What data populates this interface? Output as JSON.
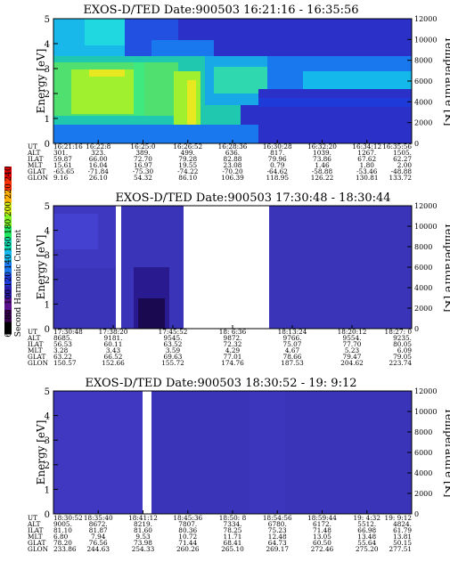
{
  "colorbar": {
    "label": "Second Harmonic Current",
    "ticks": [
      "60",
      "80",
      "100",
      "120",
      "140",
      "160",
      "180",
      "200",
      "220",
      "240"
    ],
    "colors": [
      "#000000",
      "#3a0050",
      "#5a108a",
      "#2a1aa8",
      "#1e3ad8",
      "#1a78ee",
      "#15b8ea",
      "#10d8b0",
      "#20e860",
      "#80f020",
      "#d8f010",
      "#ffb000",
      "#ff3000",
      "#e00000"
    ]
  },
  "chart_data": [
    {
      "type": "heatmap",
      "title": "EXOS-D/TED   Date:900503   16:21:16 - 16:35:56",
      "ylabel": "Energy [eV]",
      "ylabel_right": "Temperature [K]",
      "ylim": [
        0,
        5
      ],
      "ylim_right": [
        0,
        12000
      ],
      "yticks": [
        "0",
        "1",
        "2",
        "3",
        "4",
        "5"
      ],
      "yticks_right": [
        "0",
        "2000",
        "4000",
        "6000",
        "8000",
        "10000",
        "12000"
      ],
      "row_labels": [
        "UT",
        "ALT",
        "ILAT",
        "MLT",
        "GLAT",
        "GLON"
      ],
      "columns": [
        [
          "16:21:16",
          "301.",
          "59.87",
          "15.61",
          "-65.65",
          "9.16"
        ],
        [
          "16:22:8",
          "323.",
          "66.00",
          "16.04",
          "-71.84",
          "26.10"
        ],
        [
          "16:25:0",
          "389.",
          "72.70",
          "16.97",
          "-75.30",
          "54.32"
        ],
        [
          "16:26:52",
          "499.",
          "79.28",
          "19.55",
          "-74.22",
          "86.10"
        ],
        [
          "16:28:36",
          "636.",
          "82.88",
          "23.08",
          "-70.20",
          "106.39"
        ],
        [
          "16:30:28",
          "817.",
          "79.96",
          "0.79",
          "-64.62",
          "118.95"
        ],
        [
          "16:32:20",
          "1039.",
          "73.86",
          "1.46",
          "-58.88",
          "126.22"
        ],
        [
          "16:34:12",
          "1267.",
          "67.62",
          "1.80",
          "-53.46",
          "130.81"
        ],
        [
          "16:35:56",
          "1505.",
          "62.27",
          "2.00",
          "-48.88",
          "133.72"
        ]
      ]
    },
    {
      "type": "heatmap",
      "title": "EXOS-D/TED   Date:900503   17:30:48 - 18:30:44",
      "ylabel": "Energy [eV]",
      "ylabel_right": "Temperature [K]",
      "ylim": [
        0,
        5
      ],
      "ylim_right": [
        0,
        12000
      ],
      "yticks": [
        "0",
        "1",
        "2",
        "3",
        "4",
        "5"
      ],
      "yticks_right": [
        "0",
        "2000",
        "4000",
        "6000",
        "8000",
        "10000",
        "12000"
      ],
      "row_labels": [
        "UT",
        "ALT",
        "ILAT",
        "MLT",
        "GLAT",
        "GLON"
      ],
      "columns": [
        [
          "17:30:48",
          "8685.",
          "56.53",
          "3.28",
          "63.22",
          "150.57"
        ],
        [
          "17:38:20",
          "9181.",
          "60.11",
          "3.43",
          "66.52",
          "152.66"
        ],
        [
          "17:45:52",
          "9545.",
          "63.52",
          "3.59",
          "69.63",
          "155.72"
        ],
        [
          "18: 6:36",
          "9872.",
          "72.32",
          "4.29",
          "77.01",
          "174.76"
        ],
        [
          "18:13:24",
          "9766.",
          "75.07",
          "4.67",
          "78.66",
          "187.53"
        ],
        [
          "18:20:12",
          "9554.",
          "77.70",
          "5.23",
          "79.47",
          "204.62"
        ],
        [
          "18:27: 0",
          "9235.",
          "80.05",
          "6.09",
          "79.05",
          "223.74"
        ]
      ]
    },
    {
      "type": "heatmap",
      "title": "EXOS-D/TED   Date:900503   18:30:52 - 19: 9:12",
      "ylabel": "Energy [eV]",
      "ylabel_right": "Temperature [K]",
      "ylim": [
        0,
        5
      ],
      "ylim_right": [
        0,
        12000
      ],
      "yticks": [
        "0",
        "1",
        "2",
        "3",
        "4",
        "5"
      ],
      "yticks_right": [
        "0",
        "2000",
        "4000",
        "6000",
        "8000",
        "10000",
        "12000"
      ],
      "row_labels": [
        "UT",
        "ALT",
        "ILAT",
        "MLT",
        "GLAT",
        "GLON"
      ],
      "columns": [
        [
          "18:30:52",
          "9005.",
          "81.10",
          "6.80",
          "78.20",
          "233.86"
        ],
        [
          "18:35:40",
          "8672.",
          "81.87",
          "7.94",
          "76.56",
          "244.63"
        ],
        [
          "18:41:12",
          "8219.",
          "81.60",
          "9.53",
          "73.98",
          "254.33"
        ],
        [
          "18:45:36",
          "7807.",
          "80.36",
          "10.72",
          "71.44",
          "260.26"
        ],
        [
          "18:50: 8",
          "7334.",
          "78.25",
          "11.71",
          "68.41",
          "265.10"
        ],
        [
          "18:54:56",
          "6780.",
          "75.23",
          "12.48",
          "64.73",
          "269.17"
        ],
        [
          "18:59:44",
          "6172.",
          "71.48",
          "13.05",
          "60.50",
          "272.46"
        ],
        [
          "19: 4:32",
          "5512.",
          "66.98",
          "13.48",
          "55.64",
          "275.20"
        ],
        [
          "19: 9:12",
          "4824.",
          "61.79",
          "13.81",
          "50.15",
          "277.51"
        ]
      ]
    }
  ]
}
